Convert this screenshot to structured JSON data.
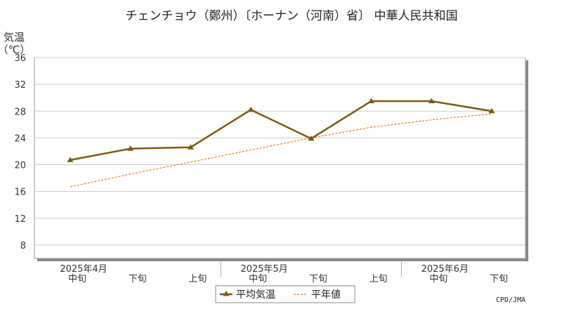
{
  "chart_data": {
    "type": "line",
    "title": "チェンチョウ（鄭州）〔ホーナン（河南）省〕 中華人民共和国",
    "ylabel_line1": "気温",
    "ylabel_line2": "（℃）",
    "ylim": [
      6,
      36
    ],
    "yticks": [
      8,
      12,
      16,
      20,
      24,
      28,
      32,
      36
    ],
    "grid": true,
    "legend_position": "bottom-center",
    "categories": [
      "中旬",
      "下旬",
      "上旬",
      "中旬",
      "下旬",
      "上旬",
      "中旬",
      "下旬"
    ],
    "months": [
      {
        "label": "2025年4月",
        "index": 0
      },
      {
        "label": "2025年5月",
        "index": 3
      },
      {
        "label": "2025年6月",
        "index": 6
      }
    ],
    "series": [
      {
        "name": "平均気温",
        "color": "#7a5c14",
        "style": "solid-triangle",
        "values": [
          20.7,
          22.4,
          22.6,
          28.2,
          23.9,
          29.5,
          29.5,
          28.0
        ]
      },
      {
        "name": "平年値",
        "color": "#f07a1a",
        "style": "dashed",
        "values": [
          16.7,
          18.6,
          20.4,
          22.2,
          24.0,
          25.6,
          26.7,
          27.6
        ]
      }
    ],
    "credit": "CPD/JMA"
  }
}
